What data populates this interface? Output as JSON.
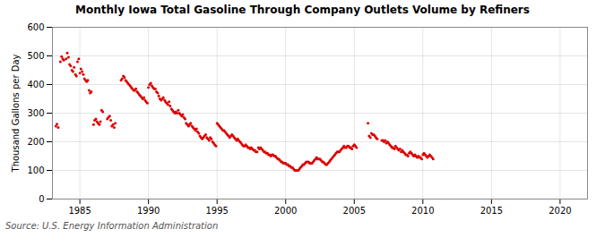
{
  "chart_data": {
    "type": "scatter",
    "title": "Monthly Iowa Total Gasoline Through Company Outlets Volume by Refiners",
    "ylabel": "Thousand Gallons per Day",
    "source": "Source: U.S. Energy Information Administration",
    "color": "#dd0000",
    "grid": true,
    "xlim": [
      1983.0,
      2022.0
    ],
    "ylim": [
      0,
      600
    ],
    "xticks": [
      1985,
      1990,
      1995,
      2000,
      2005,
      2010,
      2015,
      2020
    ],
    "yticks": [
      0,
      100,
      200,
      300,
      400,
      500,
      600
    ],
    "x": [
      1983.25,
      1983.33,
      1983.42,
      1983.58,
      1983.67,
      1983.75,
      1983.83,
      1984.0,
      1984.08,
      1984.17,
      1984.25,
      1984.33,
      1984.42,
      1984.5,
      1984.58,
      1984.67,
      1984.75,
      1984.83,
      1984.92,
      1985.0,
      1985.08,
      1985.17,
      1985.25,
      1985.33,
      1985.42,
      1985.5,
      1985.58,
      1985.67,
      1985.75,
      1985.83,
      1986.0,
      1986.08,
      1986.17,
      1986.25,
      1986.33,
      1986.42,
      1986.5,
      1986.58,
      1986.67,
      1987.0,
      1987.08,
      1987.17,
      1987.25,
      1987.33,
      1987.42,
      1987.5,
      1987.58,
      1988.0,
      1988.08,
      1988.17,
      1988.25,
      1988.33,
      1988.42,
      1988.5,
      1988.58,
      1988.67,
      1988.75,
      1988.83,
      1988.92,
      1989.0,
      1989.08,
      1989.17,
      1989.25,
      1989.33,
      1989.42,
      1989.5,
      1989.58,
      1989.67,
      1989.75,
      1989.83,
      1989.92,
      1990.0,
      1990.08,
      1990.17,
      1990.25,
      1990.33,
      1990.42,
      1990.5,
      1990.58,
      1990.67,
      1990.75,
      1990.83,
      1990.92,
      1991.0,
      1991.08,
      1991.17,
      1991.25,
      1991.33,
      1991.42,
      1991.5,
      1991.58,
      1991.67,
      1991.75,
      1991.83,
      1991.92,
      1992.0,
      1992.08,
      1992.17,
      1992.25,
      1992.33,
      1992.42,
      1992.5,
      1992.58,
      1992.67,
      1992.75,
      1992.83,
      1992.92,
      1993.0,
      1993.08,
      1993.17,
      1993.25,
      1993.33,
      1993.42,
      1993.5,
      1993.58,
      1993.67,
      1993.75,
      1993.83,
      1993.92,
      1994.0,
      1994.08,
      1994.17,
      1994.25,
      1994.33,
      1994.42,
      1994.5,
      1994.58,
      1994.67,
      1994.75,
      1994.83,
      1994.92,
      1995.0,
      1995.08,
      1995.17,
      1995.25,
      1995.33,
      1995.42,
      1995.5,
      1995.58,
      1995.67,
      1995.75,
      1995.83,
      1995.92,
      1996.0,
      1996.08,
      1996.17,
      1996.25,
      1996.33,
      1996.42,
      1996.5,
      1996.58,
      1996.67,
      1996.75,
      1996.83,
      1996.92,
      1997.0,
      1997.08,
      1997.17,
      1997.25,
      1997.33,
      1997.42,
      1997.5,
      1997.58,
      1997.67,
      1997.75,
      1997.83,
      1997.92,
      1998.0,
      1998.08,
      1998.17,
      1998.25,
      1998.33,
      1998.42,
      1998.5,
      1998.58,
      1998.67,
      1998.75,
      1998.83,
      1998.92,
      1999.0,
      1999.08,
      1999.17,
      1999.25,
      1999.33,
      1999.42,
      1999.5,
      1999.58,
      1999.67,
      1999.75,
      1999.83,
      1999.92,
      2000.0,
      2000.08,
      2000.17,
      2000.25,
      2000.33,
      2000.42,
      2000.5,
      2000.58,
      2000.67,
      2000.75,
      2000.83,
      2000.92,
      2001.0,
      2001.08,
      2001.17,
      2001.25,
      2001.33,
      2001.42,
      2001.5,
      2001.58,
      2001.67,
      2001.75,
      2001.83,
      2001.92,
      2002.0,
      2002.08,
      2002.17,
      2002.25,
      2002.33,
      2002.42,
      2002.5,
      2002.58,
      2002.67,
      2002.75,
      2002.83,
      2002.92,
      2003.0,
      2003.08,
      2003.17,
      2003.25,
      2003.33,
      2003.42,
      2003.5,
      2003.58,
      2003.67,
      2003.75,
      2003.83,
      2003.92,
      2004.0,
      2004.08,
      2004.17,
      2004.25,
      2004.33,
      2004.42,
      2004.5,
      2004.58,
      2004.67,
      2004.75,
      2004.83,
      2004.92,
      2005.0,
      2005.08,
      2005.17,
      2006.0,
      2006.08,
      2006.17,
      2006.25,
      2006.33,
      2006.42,
      2006.5,
      2006.58,
      2006.67,
      2007.0,
      2007.08,
      2007.17,
      2007.25,
      2007.33,
      2007.42,
      2007.5,
      2007.58,
      2007.67,
      2007.75,
      2007.83,
      2007.92,
      2008.0,
      2008.08,
      2008.17,
      2008.25,
      2008.33,
      2008.42,
      2008.5,
      2008.58,
      2008.67,
      2008.75,
      2008.83,
      2008.92,
      2009.0,
      2009.08,
      2009.17,
      2009.25,
      2009.33,
      2009.42,
      2009.5,
      2009.58,
      2009.67,
      2009.75,
      2009.83,
      2009.92,
      2010.0,
      2010.08,
      2010.17,
      2010.25,
      2010.33,
      2010.42,
      2010.5,
      2010.58,
      2010.67,
      2010.75
    ],
    "values": [
      255,
      262,
      250,
      480,
      498,
      490,
      485,
      490,
      510,
      495,
      470,
      465,
      450,
      445,
      460,
      435,
      430,
      480,
      490,
      440,
      455,
      445,
      435,
      420,
      415,
      410,
      415,
      380,
      370,
      375,
      260,
      275,
      280,
      270,
      265,
      260,
      270,
      310,
      305,
      280,
      285,
      290,
      275,
      255,
      260,
      250,
      265,
      415,
      420,
      430,
      425,
      415,
      410,
      405,
      400,
      395,
      390,
      385,
      380,
      380,
      385,
      375,
      370,
      365,
      360,
      355,
      350,
      355,
      345,
      340,
      335,
      390,
      400,
      405,
      395,
      390,
      385,
      385,
      375,
      370,
      360,
      350,
      345,
      350,
      355,
      345,
      340,
      335,
      330,
      340,
      325,
      315,
      310,
      305,
      300,
      305,
      300,
      310,
      300,
      295,
      290,
      295,
      285,
      280,
      265,
      260,
      255,
      260,
      265,
      255,
      250,
      245,
      240,
      245,
      235,
      230,
      220,
      215,
      210,
      215,
      220,
      225,
      215,
      210,
      205,
      215,
      210,
      200,
      195,
      190,
      185,
      265,
      260,
      255,
      250,
      245,
      240,
      240,
      235,
      230,
      225,
      220,
      215,
      220,
      225,
      220,
      215,
      210,
      205,
      210,
      205,
      200,
      195,
      190,
      185,
      185,
      190,
      185,
      180,
      180,
      175,
      180,
      175,
      170,
      170,
      165,
      165,
      180,
      175,
      180,
      175,
      170,
      165,
      165,
      160,
      160,
      155,
      155,
      150,
      155,
      155,
      150,
      150,
      145,
      140,
      140,
      135,
      130,
      130,
      125,
      125,
      125,
      120,
      120,
      115,
      115,
      110,
      110,
      105,
      100,
      100,
      100,
      100,
      105,
      110,
      115,
      120,
      120,
      125,
      130,
      130,
      130,
      125,
      125,
      125,
      130,
      135,
      140,
      145,
      140,
      140,
      140,
      135,
      130,
      130,
      125,
      120,
      120,
      125,
      130,
      135,
      140,
      145,
      150,
      155,
      160,
      165,
      165,
      165,
      170,
      175,
      180,
      185,
      180,
      180,
      185,
      185,
      180,
      180,
      175,
      185,
      190,
      185,
      180,
      265,
      220,
      215,
      230,
      225,
      225,
      220,
      215,
      210,
      205,
      205,
      200,
      205,
      195,
      200,
      195,
      190,
      185,
      180,
      180,
      175,
      185,
      180,
      175,
      170,
      175,
      165,
      170,
      165,
      160,
      155,
      155,
      150,
      160,
      165,
      160,
      155,
      150,
      155,
      150,
      145,
      150,
      145,
      145,
      140,
      155,
      160,
      155,
      150,
      145,
      150,
      155,
      150,
      145,
      140
    ]
  }
}
